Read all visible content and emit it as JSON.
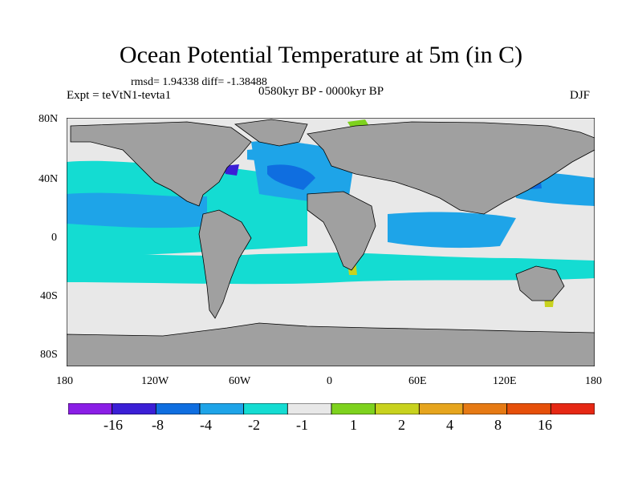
{
  "header": {
    "title": "Ocean Potential Temperature at 5m (in C)",
    "stats": "rmsd= 1.94338 diff= -1.38488",
    "experiment": "Expt = teVtN1-tevta1",
    "period": "0580kyr BP - 0000kyr BP",
    "season": "DJF"
  },
  "axes": {
    "y_ticks": [
      "80N",
      "40N",
      "0",
      "40S",
      "80S"
    ],
    "x_ticks": [
      "180",
      "120W",
      "60W",
      "0",
      "60E",
      "120E",
      "180"
    ]
  },
  "colorbar": {
    "colors": [
      "#8a1ee6",
      "#3b1fd6",
      "#0f6ee0",
      "#1ea4e8",
      "#14dcd2",
      "#e8e8e8",
      "#7ed21e",
      "#c8d21e",
      "#e6a51e",
      "#e67a14",
      "#e6500a",
      "#e62814"
    ],
    "labels": [
      "-16",
      "-8",
      "-4",
      "-2",
      "-1",
      "1",
      "2",
      "4",
      "8",
      "16"
    ]
  },
  "colors": {
    "land": "#a0a0a0",
    "ocean_neutral": "#e8e8e8",
    "coastline": "#000000"
  }
}
